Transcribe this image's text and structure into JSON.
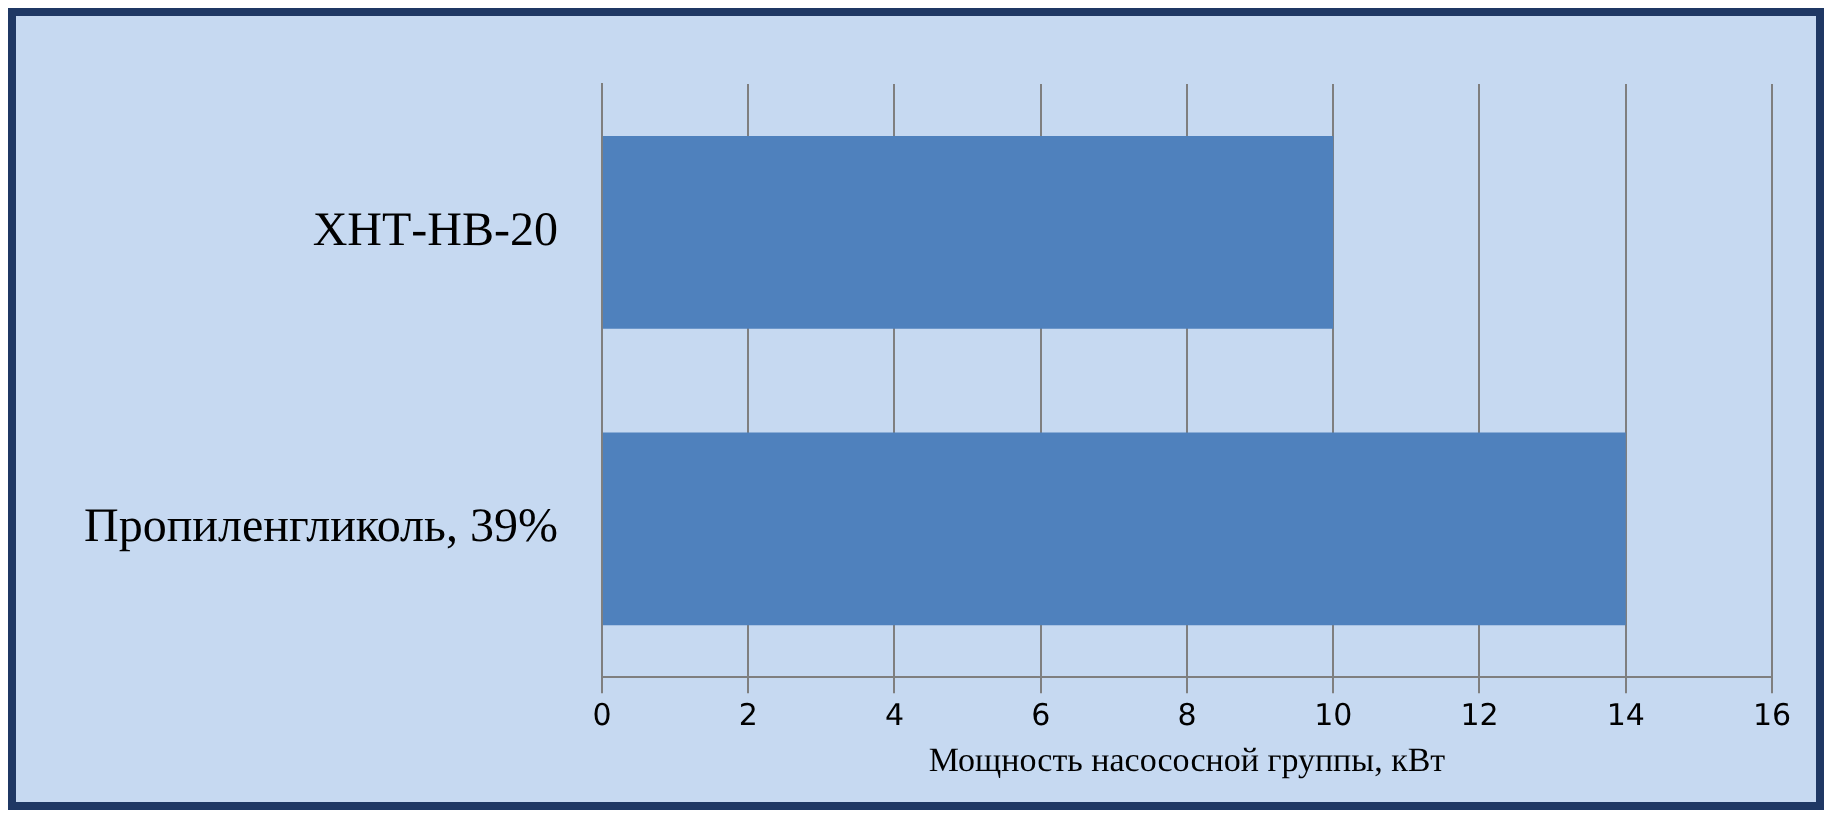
{
  "chart_data": {
    "type": "bar",
    "orientation": "horizontal",
    "categories": [
      "ХНТ-НВ-20",
      "Пропиленгликоль, 39%"
    ],
    "values": [
      10,
      14
    ],
    "color": "#4f81bd",
    "xlim": [
      0,
      16
    ],
    "xticks": [
      0,
      2,
      4,
      6,
      8,
      10,
      12,
      14,
      16
    ],
    "grid": "x",
    "xlabel": "Мощность насососной группы, кВт"
  }
}
